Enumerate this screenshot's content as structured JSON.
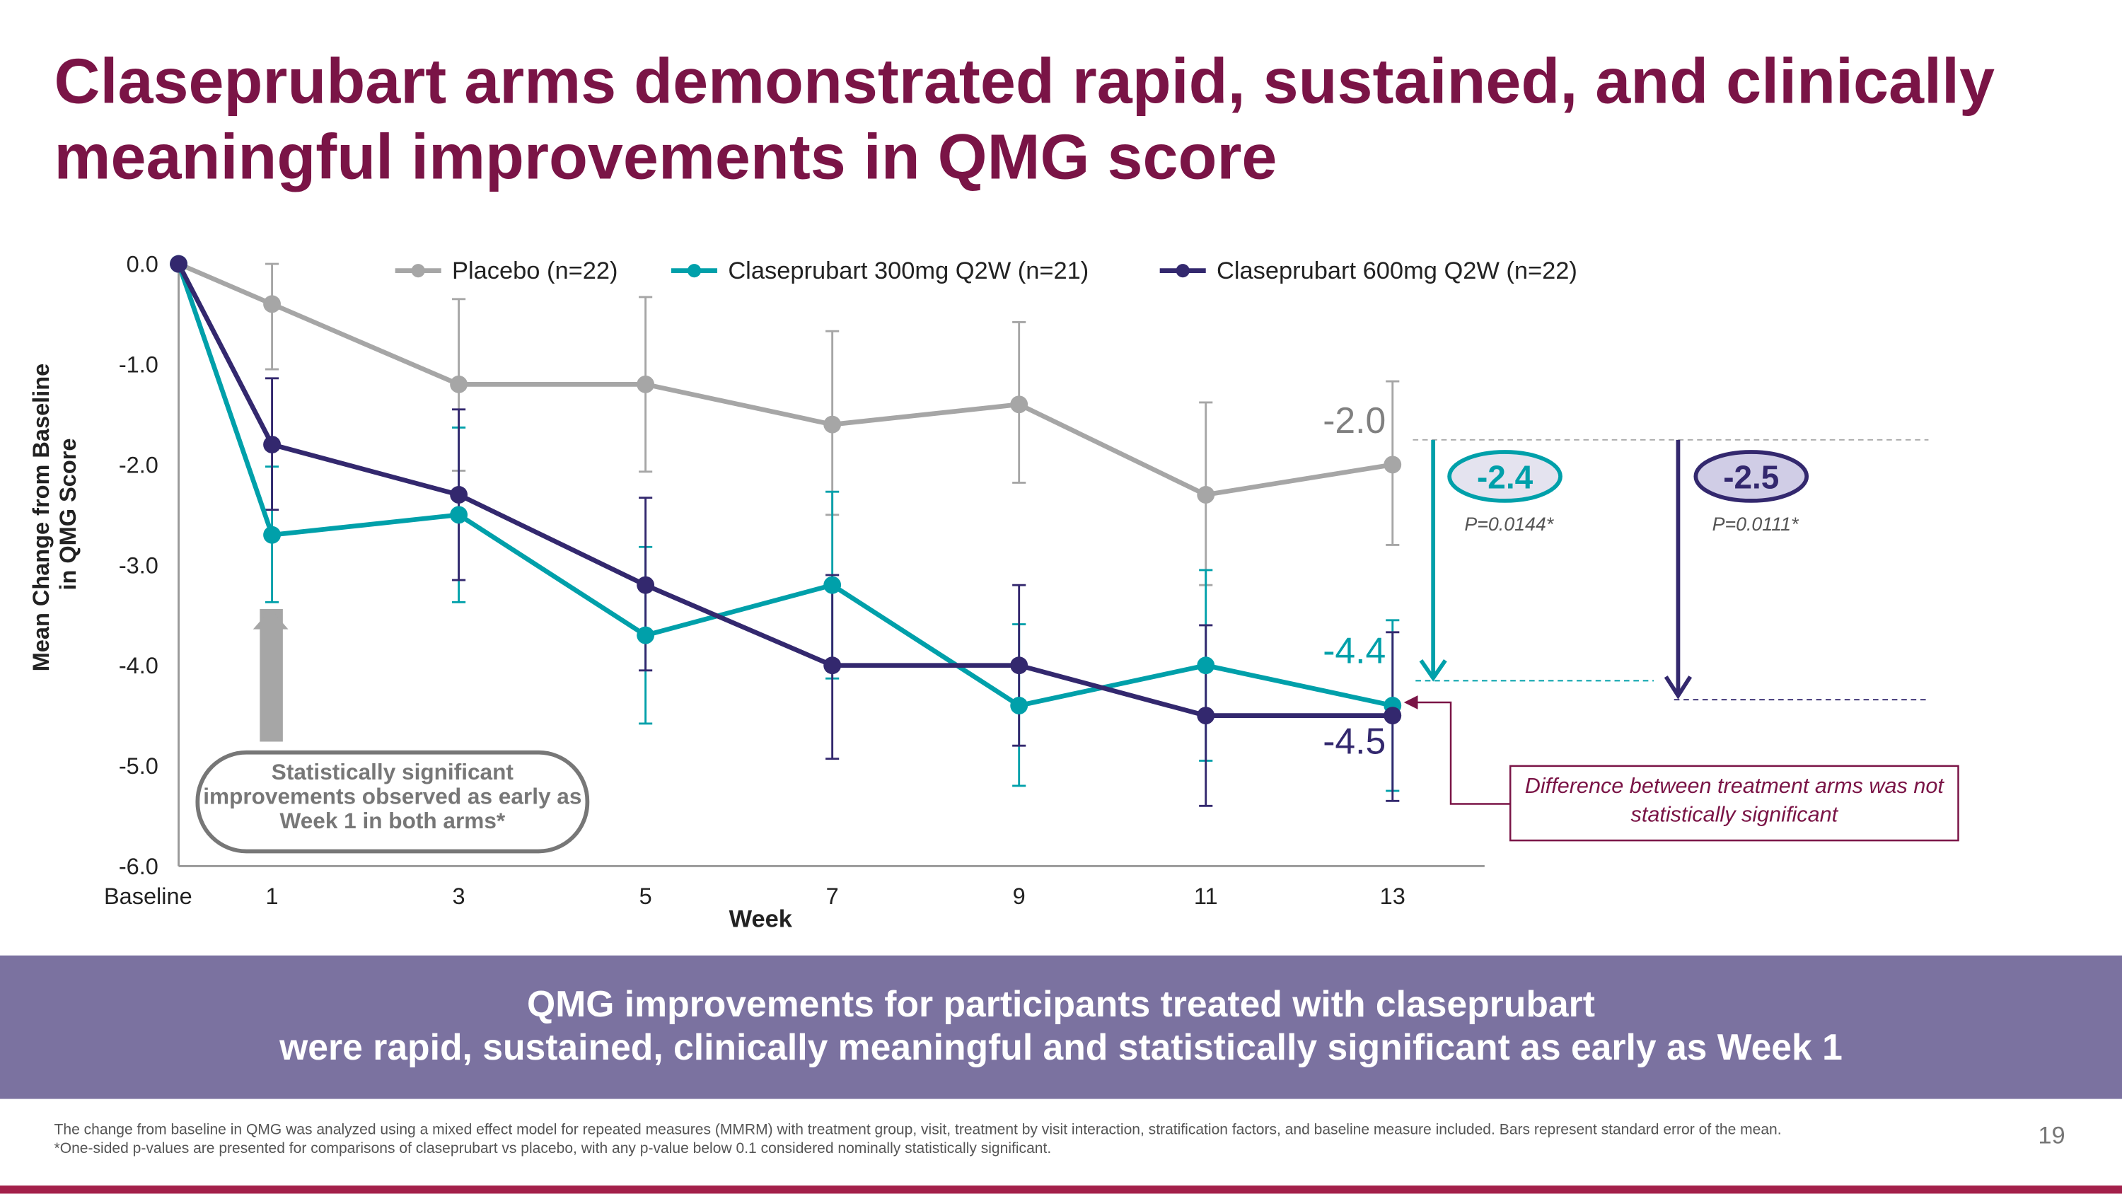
{
  "title": "Claseprubart arms demonstrated rapid, sustained, and clinically meaningful improvements in QMG score",
  "chart_data": {
    "type": "line",
    "xlabel": "Week",
    "ylabel": "Mean Change from Baseline in QMG Score",
    "x": [
      0,
      1,
      3,
      5,
      7,
      9,
      11,
      13
    ],
    "x_tick_labels": [
      "Baseline",
      "1",
      "3",
      "5",
      "7",
      "9",
      "11",
      "13"
    ],
    "y_ticks": [
      "0.0",
      "-1.0",
      "-2.0",
      "-3.0",
      "-4.0",
      "-5.0",
      "-6.0"
    ],
    "ylim": [
      -6.0,
      0.0
    ],
    "grid": false,
    "legend_position": "top",
    "error_bars": "standard error of the mean",
    "series": [
      {
        "name": "Placebo (n=22)",
        "color": "#a6a6a6",
        "values": [
          0,
          -0.4,
          -1.2,
          -1.2,
          -1.6,
          -1.4,
          -2.3,
          -2.0
        ],
        "upper": [
          null,
          0.0,
          -0.35,
          -0.33,
          -0.67,
          -0.58,
          -1.38,
          -1.17
        ],
        "lower": [
          null,
          -1.05,
          -2.06,
          -2.07,
          -2.5,
          -2.18,
          -3.2,
          -2.8
        ]
      },
      {
        "name": "Claseprubart 300mg Q2W (n=21)",
        "color": "#00a0aa",
        "values": [
          0,
          -2.7,
          -2.5,
          -3.7,
          -3.2,
          -4.4,
          -4.0,
          -4.4
        ],
        "upper": [
          null,
          -2.02,
          -1.63,
          -2.82,
          -2.27,
          -3.59,
          -3.05,
          -3.55
        ],
        "lower": [
          null,
          -3.37,
          -3.37,
          -4.58,
          -4.13,
          -5.2,
          -4.95,
          -5.25
        ]
      },
      {
        "name": "Claseprubart 600mg Q2W  (n=22)",
        "color": "#33286e",
        "values": [
          0,
          -1.8,
          -2.3,
          -3.2,
          -4.0,
          -4.0,
          -4.5,
          -4.5
        ],
        "upper": [
          null,
          -1.14,
          -1.45,
          -2.33,
          -3.1,
          -3.2,
          -3.6,
          -3.67
        ],
        "lower": [
          null,
          -2.45,
          -3.15,
          -4.05,
          -4.93,
          -4.8,
          -5.4,
          -5.35
        ]
      }
    ],
    "annotations": {
      "placebo_end": "-2.0",
      "low_end": "-4.4",
      "high_end": "-4.5",
      "diff_low": "-2.4",
      "diff_low_p": "P=0.0144*",
      "diff_high": "-2.5",
      "diff_high_p": "P=0.0111*",
      "callout_ns": "Difference between treatment arms was not statistically significant",
      "callout_week1": "Statistically significant improvements observed as early as Week 1 in both arms*"
    }
  },
  "banner": {
    "line1": "QMG improvements for participants treated with claseprubart",
    "line2": "were rapid, sustained, clinically meaningful and statistically significant as early as Week 1"
  },
  "footnotes": {
    "line1": "The change from baseline in QMG was analyzed using a mixed effect model for repeated measures (MMRM) with treatment group, visit, treatment by visit interaction, stratification factors, and baseline measure included. Bars represent standard error of the mean.",
    "line2": "*One-sided p-values are presented for comparisons of claseprubart vs placebo, with any p-value below 0.1 considered nominally statistically significant."
  },
  "page_number": "19"
}
